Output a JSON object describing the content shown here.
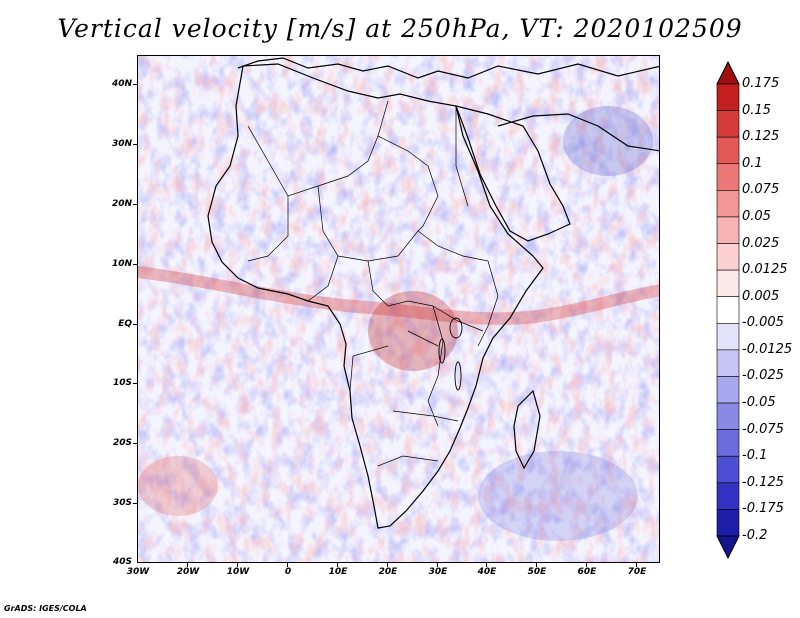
{
  "title": "Vertical velocity [m/s] at 250hPa, VT: 2020102509",
  "credit": "GrADS: IGES/COLA",
  "map": {
    "region": "Africa",
    "lat_labels": [
      "40N",
      "30N",
      "20N",
      "10N",
      "EQ",
      "10S",
      "20S",
      "30S",
      "40S"
    ],
    "lon_labels": [
      "30W",
      "20W",
      "10W",
      "0",
      "10E",
      "20E",
      "30E",
      "40E",
      "50E",
      "60E",
      "70E"
    ],
    "lat_range": [
      -40,
      45
    ],
    "lon_range": [
      -30,
      75
    ]
  },
  "colorbar": {
    "labels": [
      "0.175",
      "0.15",
      "0.125",
      "0.1",
      "0.075",
      "0.05",
      "0.025",
      "0.0125",
      "0.005",
      "-0.005",
      "-0.0125",
      "-0.025",
      "-0.05",
      "-0.075",
      "-0.1",
      "-0.125",
      "-0.175",
      "-0.2"
    ],
    "colors": [
      "#a01010",
      "#c42020",
      "#d63b3b",
      "#e45858",
      "#ec7878",
      "#f29696",
      "#f6b4b4",
      "#fad0d0",
      "#fde8e8",
      "#ffffff",
      "#e2e2fa",
      "#c6c6f4",
      "#a8a8ee",
      "#8a8ae6",
      "#6c6cde",
      "#4e4ed4",
      "#3232c2",
      "#1e1eaa",
      "#14148e"
    ]
  }
}
